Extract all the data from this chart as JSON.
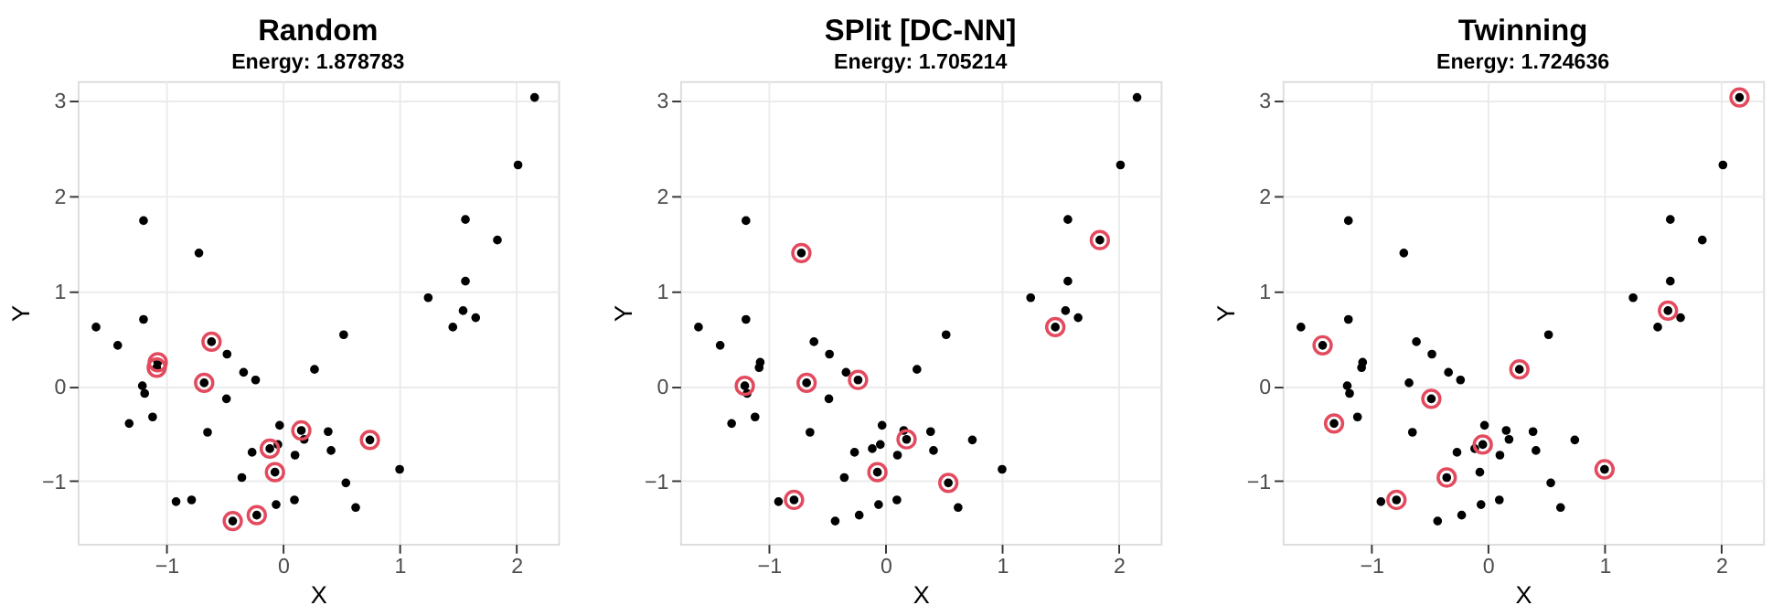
{
  "chart_data": [
    {
      "type": "scatter",
      "title": "Random",
      "subtitle": "Energy: 1.878783",
      "xlabel": "X",
      "ylabel": "Y",
      "xlim": [
        -1.76,
        2.36
      ],
      "ylim": [
        -1.66,
        3.2
      ],
      "xticks": [
        -1,
        0,
        1,
        2
      ],
      "yticks": [
        -1,
        0,
        1,
        2,
        3
      ],
      "grid": true,
      "series": [
        {
          "marker": "circle",
          "color": "#000000",
          "x": [
            2.157,
            2.015,
            1.564,
            1.838,
            1.564,
            1.245,
            1.544,
            1.652,
            1.456,
            0.52,
            -1.196,
            -0.721,
            -1.196,
            -1.603,
            -1.417,
            -0.613,
            -1.074,
            -1.083,
            -0.48,
            -0.338,
            -0.235,
            -0.676,
            -1.206,
            -1.186,
            -0.485,
            0.27,
            -1.118,
            -1.319,
            -0.647,
            -0.029,
            0.157,
            0.181,
            0.387,
            -0.044,
            -0.113,
            -0.265,
            0.103,
            0.412,
            0.745,
            -0.069,
            -0.353,
            1.0,
            0.539,
            -0.917,
            -0.784,
            0.098,
            -0.059,
            0.623,
            -0.225,
            -0.431
          ],
          "values": [
            3.03,
            2.32,
            1.747,
            1.531,
            1.099,
            0.926,
            0.79,
            0.716,
            0.617,
            0.537,
            1.735,
            1.395,
            0.698,
            0.617,
            0.426,
            0.463,
            0.247,
            0.191,
            0.333,
            0.142,
            0.062,
            0.031,
            0.0,
            -0.08,
            -0.136,
            0.173,
            -0.327,
            -0.395,
            -0.488,
            -0.414,
            -0.469,
            -0.562,
            -0.481,
            -0.617,
            -0.66,
            -0.698,
            -0.728,
            -0.679,
            -0.568,
            -0.907,
            -0.963,
            -0.877,
            -1.019,
            -1.216,
            -1.198,
            -1.198,
            -1.247,
            -1.278,
            -1.358,
            -1.42
          ]
        },
        {
          "marker": "circle",
          "color": "#e34a5e",
          "x": [
            -0.613,
            -1.074,
            -1.083,
            -0.676,
            0.157,
            -0.113,
            0.745,
            -0.069,
            -0.225,
            -0.431
          ],
          "values": [
            0.463,
            0.247,
            0.191,
            0.031,
            -0.469,
            -0.66,
            -0.568,
            -0.907,
            -1.358,
            -1.42
          ]
        }
      ]
    },
    {
      "type": "scatter",
      "title": "SPlit [DC-NN]",
      "subtitle": "Energy: 1.705214",
      "xlabel": "X",
      "ylabel": "Y",
      "xlim": [
        -1.76,
        2.36
      ],
      "ylim": [
        -1.66,
        3.2
      ],
      "xticks": [
        -1,
        0,
        1,
        2
      ],
      "yticks": [
        -1,
        0,
        1,
        2,
        3
      ],
      "grid": true,
      "series": [
        {
          "marker": "circle",
          "color": "#000000",
          "x": [
            2.157,
            2.015,
            1.564,
            1.838,
            1.564,
            1.245,
            1.544,
            1.652,
            1.456,
            0.52,
            -1.196,
            -0.721,
            -1.196,
            -1.603,
            -1.417,
            -0.613,
            -1.074,
            -1.083,
            -0.48,
            -0.338,
            -0.235,
            -0.676,
            -1.206,
            -1.186,
            -0.485,
            0.27,
            -1.118,
            -1.319,
            -0.647,
            -0.029,
            0.157,
            0.181,
            0.387,
            -0.044,
            -0.113,
            -0.265,
            0.103,
            0.412,
            0.745,
            -0.069,
            -0.353,
            1.0,
            0.539,
            -0.917,
            -0.784,
            0.098,
            -0.059,
            0.623,
            -0.225,
            -0.431
          ],
          "values": [
            3.03,
            2.32,
            1.747,
            1.531,
            1.099,
            0.926,
            0.79,
            0.716,
            0.617,
            0.537,
            1.735,
            1.395,
            0.698,
            0.617,
            0.426,
            0.463,
            0.247,
            0.191,
            0.333,
            0.142,
            0.062,
            0.031,
            0.0,
            -0.08,
            -0.136,
            0.173,
            -0.327,
            -0.395,
            -0.488,
            -0.414,
            -0.469,
            -0.562,
            -0.481,
            -0.617,
            -0.66,
            -0.698,
            -0.728,
            -0.679,
            -0.568,
            -0.907,
            -0.963,
            -0.877,
            -1.019,
            -1.216,
            -1.198,
            -1.198,
            -1.247,
            -1.278,
            -1.358,
            -1.42
          ]
        },
        {
          "marker": "circle",
          "color": "#e34a5e",
          "x": [
            -0.721,
            -1.206,
            -0.676,
            -0.235,
            0.181,
            -0.069,
            0.539,
            -0.784,
            1.456,
            1.838
          ],
          "values": [
            1.395,
            0.0,
            0.031,
            0.062,
            -0.562,
            -0.907,
            -1.019,
            -1.198,
            0.617,
            1.531
          ]
        }
      ]
    },
    {
      "type": "scatter",
      "title": "Twinning",
      "subtitle": "Energy: 1.724636",
      "xlabel": "X",
      "ylabel": "Y",
      "xlim": [
        -1.76,
        2.36
      ],
      "ylim": [
        -1.66,
        3.2
      ],
      "xticks": [
        -1,
        0,
        1,
        2
      ],
      "yticks": [
        -1,
        0,
        1,
        2,
        3
      ],
      "grid": true,
      "series": [
        {
          "marker": "circle",
          "color": "#000000",
          "x": [
            2.157,
            2.015,
            1.564,
            1.838,
            1.564,
            1.245,
            1.544,
            1.652,
            1.456,
            0.52,
            -1.196,
            -0.721,
            -1.196,
            -1.603,
            -1.417,
            -0.613,
            -1.074,
            -1.083,
            -0.48,
            -0.338,
            -0.235,
            -0.676,
            -1.206,
            -1.186,
            -0.485,
            0.27,
            -1.118,
            -1.319,
            -0.647,
            -0.029,
            0.157,
            0.181,
            0.387,
            -0.044,
            -0.113,
            -0.265,
            0.103,
            0.412,
            0.745,
            -0.069,
            -0.353,
            1.0,
            0.539,
            -0.917,
            -0.784,
            0.098,
            -0.059,
            0.623,
            -0.225,
            -0.431
          ],
          "values": [
            3.03,
            2.32,
            1.747,
            1.531,
            1.099,
            0.926,
            0.79,
            0.716,
            0.617,
            0.537,
            1.735,
            1.395,
            0.698,
            0.617,
            0.426,
            0.463,
            0.247,
            0.191,
            0.333,
            0.142,
            0.062,
            0.031,
            0.0,
            -0.08,
            -0.136,
            0.173,
            -0.327,
            -0.395,
            -0.488,
            -0.414,
            -0.469,
            -0.562,
            -0.481,
            -0.617,
            -0.66,
            -0.698,
            -0.728,
            -0.679,
            -0.568,
            -0.907,
            -0.963,
            -0.877,
            -1.019,
            -1.216,
            -1.198,
            -1.198,
            -1.247,
            -1.278,
            -1.358,
            -1.42
          ]
        },
        {
          "marker": "circle",
          "color": "#e34a5e",
          "x": [
            2.157,
            1.544,
            -1.417,
            -1.319,
            -0.485,
            0.27,
            -0.044,
            -0.353,
            -0.784,
            1.0
          ],
          "values": [
            3.03,
            0.79,
            0.426,
            -0.395,
            -0.136,
            0.173,
            -0.617,
            -0.963,
            -1.198,
            -0.877
          ]
        }
      ]
    }
  ]
}
